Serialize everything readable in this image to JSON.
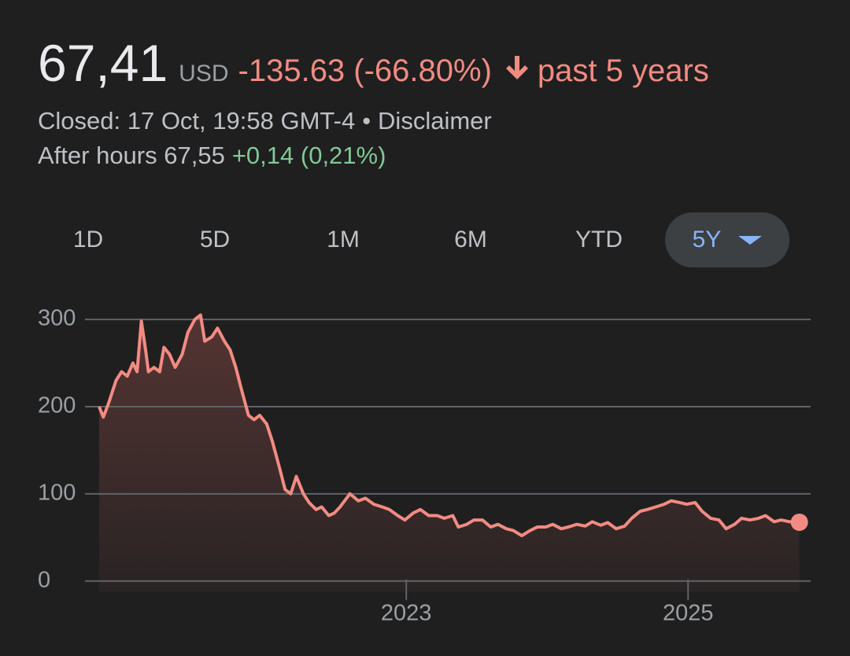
{
  "header": {
    "price": "67,41",
    "currency": "USD",
    "change": "-135.63 (-66.80%)",
    "period": "past 5 years",
    "closed": "Closed: 17 Oct, 19:58 GMT-4",
    "separator": "•",
    "disclaimer": "Disclaimer",
    "after_hours": "After hours 67,55",
    "after_hours_change": "+0,14 (0,21%)"
  },
  "ranges": {
    "items": [
      "1D",
      "5D",
      "1M",
      "6M",
      "YTD",
      "5Y"
    ]
  },
  "chart_data": {
    "type": "area",
    "x": [
      2020.82,
      2020.85,
      2020.89,
      2020.94,
      2020.98,
      2021.02,
      2021.06,
      2021.09,
      2021.12,
      2021.15,
      2021.17,
      2021.21,
      2021.25,
      2021.28,
      2021.32,
      2021.36,
      2021.41,
      2021.45,
      2021.5,
      2021.54,
      2021.57,
      2021.62,
      2021.66,
      2021.71,
      2021.75,
      2021.79,
      2021.83,
      2021.88,
      2021.92,
      2021.96,
      2022.01,
      2022.05,
      2022.1,
      2022.14,
      2022.18,
      2022.22,
      2022.27,
      2022.31,
      2022.36,
      2022.4,
      2022.45,
      2022.49,
      2022.53,
      2022.6,
      2022.66,
      2022.71,
      2022.77,
      2022.83,
      2022.88,
      2022.94,
      2022.99,
      2023.05,
      2023.1,
      2023.16,
      2023.22,
      2023.27,
      2023.33,
      2023.37,
      2023.43,
      2023.48,
      2023.54,
      2023.6,
      2023.65,
      2023.71,
      2023.76,
      2023.82,
      2023.88,
      2023.93,
      2023.99,
      2024.04,
      2024.1,
      2024.15,
      2024.21,
      2024.27,
      2024.32,
      2024.38,
      2024.43,
      2024.49,
      2024.55,
      2024.6,
      2024.66,
      2024.71,
      2024.77,
      2024.83,
      2024.88,
      2024.94,
      2024.99,
      2025.05,
      2025.1,
      2025.16,
      2025.22,
      2025.27,
      2025.33,
      2025.38,
      2025.44,
      2025.5,
      2025.55,
      2025.61,
      2025.66,
      2025.72,
      2025.79
    ],
    "series": [
      {
        "color": "#f28b82",
        "values": [
          200,
          188,
          205,
          230,
          240,
          235,
          250,
          240,
          298,
          265,
          240,
          245,
          240,
          268,
          260,
          245,
          260,
          285,
          300,
          305,
          275,
          280,
          290,
          275,
          265,
          245,
          220,
          190,
          185,
          190,
          180,
          160,
          130,
          105,
          100,
          120,
          100,
          90,
          82,
          85,
          75,
          78,
          85,
          100,
          92,
          95,
          88,
          85,
          82,
          75,
          70,
          78,
          82,
          75,
          75,
          72,
          75,
          62,
          65,
          70,
          70,
          62,
          65,
          60,
          58,
          52,
          58,
          62,
          62,
          65,
          60,
          62,
          65,
          63,
          68,
          64,
          67,
          60,
          63,
          72,
          80,
          82,
          85,
          88,
          92,
          90,
          88,
          90,
          80,
          72,
          70,
          60,
          65,
          72,
          70,
          72,
          75,
          68,
          70,
          68,
          67.41
        ]
      }
    ],
    "xlim": [
      2020.72,
      2025.87
    ],
    "xticks": [
      2023,
      2025
    ],
    "ylim": [
      -12,
      310
    ],
    "yticks": [
      0,
      100,
      200,
      300
    ],
    "grid": true
  }
}
